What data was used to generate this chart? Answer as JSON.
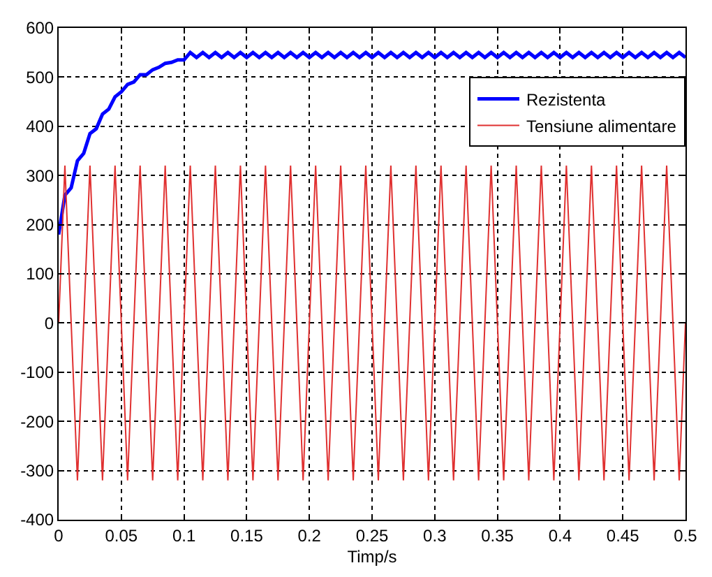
{
  "chart_data": {
    "type": "line",
    "xlabel": "Timp/s",
    "x": [
      0,
      0.005,
      0.01,
      0.015,
      0.02,
      0.025,
      0.03,
      0.035,
      0.04,
      0.045,
      0.05,
      0.055,
      0.06,
      0.065,
      0.07,
      0.075,
      0.08,
      0.085,
      0.09,
      0.095,
      0.1,
      0.105,
      0.11,
      0.115,
      0.12,
      0.125,
      0.13,
      0.135,
      0.14,
      0.145,
      0.15,
      0.155,
      0.16,
      0.165,
      0.17,
      0.175,
      0.18,
      0.185,
      0.19,
      0.195,
      0.2,
      0.205,
      0.21,
      0.215,
      0.22,
      0.225,
      0.23,
      0.235,
      0.24,
      0.245,
      0.25,
      0.255,
      0.26,
      0.265,
      0.27,
      0.275,
      0.28,
      0.285,
      0.29,
      0.295,
      0.3,
      0.305,
      0.31,
      0.315,
      0.32,
      0.325,
      0.33,
      0.335,
      0.34,
      0.345,
      0.35,
      0.355,
      0.36,
      0.365,
      0.37,
      0.375,
      0.38,
      0.385,
      0.39,
      0.395,
      0.4,
      0.405,
      0.41,
      0.415,
      0.42,
      0.425,
      0.43,
      0.435,
      0.44,
      0.445,
      0.45,
      0.455,
      0.46,
      0.465,
      0.47,
      0.475,
      0.48,
      0.485,
      0.49,
      0.495,
      0.5
    ],
    "series": [
      {
        "name": "Rezistenta",
        "color": "#0000ff",
        "values": [
          180,
          260,
          275,
          330,
          345,
          385,
          395,
          425,
          435,
          460,
          470,
          485,
          490,
          505,
          505,
          515,
          520,
          528,
          530,
          535,
          535,
          550,
          540,
          550,
          540,
          550,
          540,
          550,
          540,
          550,
          540,
          550,
          540,
          550,
          540,
          550,
          540,
          550,
          540,
          550,
          540,
          550,
          540,
          550,
          540,
          550,
          540,
          550,
          540,
          550,
          540,
          550,
          540,
          550,
          540,
          550,
          540,
          550,
          540,
          550,
          540,
          550,
          540,
          550,
          540,
          550,
          540,
          550,
          540,
          550,
          540,
          550,
          540,
          550,
          540,
          550,
          540,
          550,
          540,
          550,
          540,
          550,
          540,
          550,
          540,
          550,
          540,
          550,
          540,
          550,
          540,
          550,
          540,
          550,
          540,
          550,
          540,
          550,
          540,
          550,
          540
        ]
      },
      {
        "name": "Tensiune alimentare",
        "color": "#e03030",
        "values": [
          0,
          320,
          0,
          -320,
          0,
          320,
          0,
          -320,
          0,
          320,
          0,
          -320,
          0,
          320,
          0,
          -320,
          0,
          320,
          0,
          -320,
          0,
          320,
          0,
          -320,
          0,
          320,
          0,
          -320,
          0,
          320,
          0,
          -320,
          0,
          320,
          0,
          -320,
          0,
          320,
          0,
          -320,
          0,
          320,
          0,
          -320,
          0,
          320,
          0,
          -320,
          0,
          320,
          0,
          -320,
          0,
          320,
          0,
          -320,
          0,
          320,
          0,
          -320,
          0,
          320,
          0,
          -320,
          0,
          320,
          0,
          -320,
          0,
          320,
          0,
          -320,
          0,
          320,
          0,
          -320,
          0,
          320,
          0,
          -320,
          0,
          320,
          0,
          -320,
          0,
          320,
          0,
          -320,
          0,
          320,
          0,
          -320,
          0,
          320,
          0,
          -320,
          0,
          320,
          0,
          -320,
          0
        ]
      }
    ],
    "xlim": [
      0,
      0.5
    ],
    "xticks": [
      0,
      0.05,
      0.1,
      0.15,
      0.2,
      0.25,
      0.3,
      0.35,
      0.4,
      0.45,
      0.5
    ],
    "ylim": [
      -400,
      600
    ],
    "yticks": [
      -400,
      -300,
      -200,
      -100,
      0,
      100,
      200,
      300,
      400,
      500,
      600
    ],
    "grid": true,
    "legend": "top right",
    "marker": "none",
    "line_style": "solid"
  }
}
